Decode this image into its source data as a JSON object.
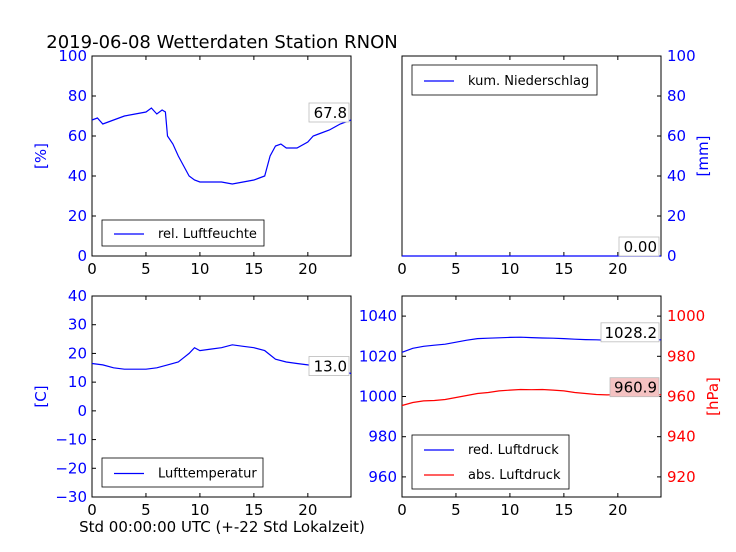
{
  "title": "2019-06-08 Wetterdaten Station RNON",
  "xlabel": "Std 00:00:00 UTC (+-22 Std Lokalzeit)",
  "colors": {
    "blue": "#0000ff",
    "red": "#ff0000",
    "label_bg_red": "#f4c2c2"
  },
  "chart_data": [
    {
      "type": "line",
      "ylabel": "[%]",
      "xlim": [
        0,
        24
      ],
      "ylim": [
        0,
        100
      ],
      "xticks": [
        "0",
        "5",
        "10",
        "15",
        "20"
      ],
      "yticks": [
        "0",
        "20",
        "40",
        "60",
        "80",
        "100"
      ],
      "legend": "lower-center",
      "last_value_label": "67.8",
      "series": [
        {
          "name": "rel. Luftfeuchte",
          "color": "#0000ff",
          "x": [
            0,
            0.5,
            1,
            1.5,
            2,
            3,
            4,
            5,
            5.5,
            6,
            6.5,
            6.8,
            7,
            7.5,
            8,
            8.5,
            9,
            9.5,
            10,
            11,
            12,
            13,
            14,
            15,
            15.5,
            16,
            16.5,
            17,
            17.5,
            18,
            19,
            20,
            20.5,
            21,
            22,
            23,
            24
          ],
          "y": [
            68,
            69,
            66,
            67,
            68,
            70,
            71,
            72,
            74,
            71,
            73,
            72,
            60,
            56,
            50,
            45,
            40,
            38,
            37,
            37,
            37,
            36,
            37,
            38,
            39,
            40,
            50,
            55,
            56,
            54,
            54,
            57,
            60,
            61,
            63,
            66,
            68
          ]
        }
      ]
    },
    {
      "type": "line",
      "ylabel": "[mm]",
      "xlim": [
        0,
        24
      ],
      "ylim": [
        0,
        100
      ],
      "xticks": [
        "0",
        "5",
        "10",
        "15",
        "20"
      ],
      "yticks": [
        "0",
        "20",
        "40",
        "60",
        "80",
        "100"
      ],
      "legend": "upper-center",
      "last_value_label": "0.00",
      "series": [
        {
          "name": "kum. Niederschlag",
          "color": "#0000ff",
          "x": [
            0,
            24
          ],
          "y": [
            0,
            0
          ]
        }
      ]
    },
    {
      "type": "line",
      "ylabel": "[C]",
      "xlim": [
        0,
        24
      ],
      "ylim": [
        -30,
        40
      ],
      "xticks": [
        "0",
        "5",
        "10",
        "15",
        "20"
      ],
      "yticks": [
        "−30",
        "−20",
        "−10",
        "0",
        "10",
        "20",
        "30",
        "40"
      ],
      "legend": "lower-center",
      "last_value_label": "13.0",
      "series": [
        {
          "name": "Lufttemperatur",
          "color": "#0000ff",
          "x": [
            0,
            1,
            2,
            3,
            4,
            5,
            6,
            7,
            8,
            8.5,
            9,
            9.5,
            10,
            11,
            12,
            13,
            14,
            15,
            16,
            17,
            18,
            19,
            20,
            21,
            22,
            23,
            24
          ],
          "y": [
            16.5,
            16,
            15,
            14.5,
            14.5,
            14.5,
            15,
            16,
            17,
            18.5,
            20,
            22,
            21,
            21.5,
            22,
            23,
            22.5,
            22,
            21,
            18,
            17,
            16.5,
            16,
            15.5,
            15,
            14,
            13
          ]
        }
      ]
    },
    {
      "type": "line",
      "ylabel": "[hPa]",
      "xlim": [
        0,
        24
      ],
      "ylim_left": [
        950,
        1050
      ],
      "ylim_right": [
        910,
        1010
      ],
      "xticks": [
        "0",
        "5",
        "10",
        "15",
        "20"
      ],
      "yticks_left": [
        "960",
        "980",
        "1000",
        "1020",
        "1040"
      ],
      "yticks_right": [
        "920",
        "940",
        "960",
        "980",
        "1000"
      ],
      "legend": "lower-center",
      "series": [
        {
          "name": "red. Luftdruck",
          "color": "#0000ff",
          "axis": "left",
          "last_value_label": "1028.2",
          "x": [
            0,
            1,
            2,
            3,
            4,
            5,
            6,
            7,
            8,
            9,
            10,
            11,
            12,
            13,
            14,
            15,
            16,
            17,
            18,
            19,
            20,
            21,
            22,
            23,
            24
          ],
          "y": [
            1022,
            1024,
            1025,
            1025.5,
            1026,
            1027,
            1028,
            1028.8,
            1029,
            1029.2,
            1029.4,
            1029.5,
            1029.3,
            1029.1,
            1029,
            1028.8,
            1028.5,
            1028.3,
            1028.2,
            1028,
            1028.1,
            1028.2,
            1028.3,
            1028.2,
            1028.2
          ]
        },
        {
          "name": "abs. Luftdruck",
          "color": "#ff0000",
          "axis": "right",
          "last_value_label": "960.9",
          "x": [
            0,
            1,
            2,
            3,
            4,
            5,
            6,
            7,
            8,
            9,
            10,
            11,
            12,
            13,
            14,
            15,
            16,
            17,
            18,
            19,
            20,
            21,
            22,
            23,
            24
          ],
          "y": [
            955.5,
            957,
            957.8,
            958,
            958.5,
            959.5,
            960.5,
            961.5,
            962,
            962.8,
            963.2,
            963.5,
            963.4,
            963.5,
            963.2,
            962.8,
            962,
            961.5,
            961,
            960.8,
            960.9,
            961,
            961,
            960.9,
            960.9
          ]
        }
      ]
    }
  ]
}
